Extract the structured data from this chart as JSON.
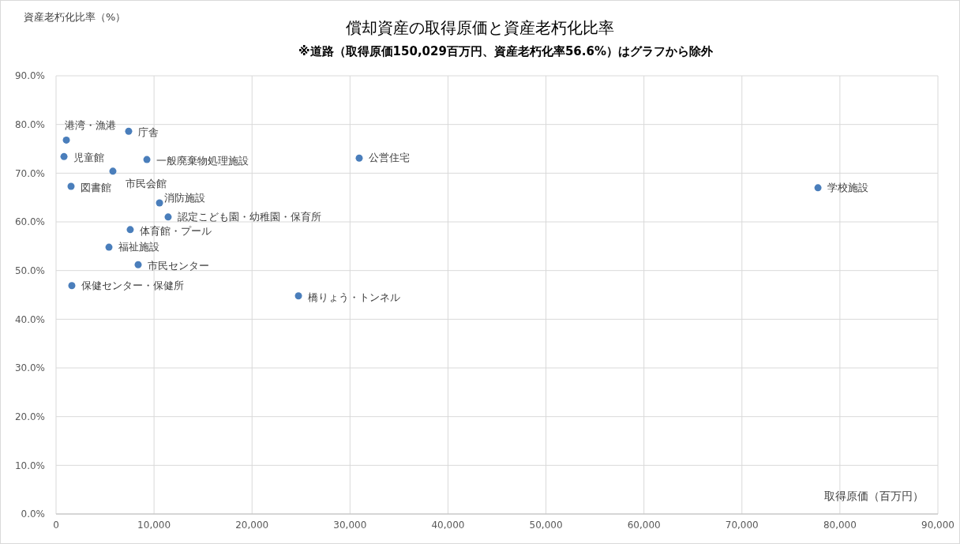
{
  "chart_data": {
    "type": "scatter",
    "title": "償却資産の取得原価と資産老朽化比率",
    "subtitle": "※道路（取得原価150,029百万円、資産老朽化率56.6%）はグラフから除外",
    "xlabel": "取得原価（百万円）",
    "ylabel": "資産老朽化比率（%）",
    "series": [
      {
        "color": "#4a7ebb",
        "x": [
          1050,
          7410,
          810,
          9270,
          5800,
          1530,
          10560,
          11440,
          7570,
          5400,
          8380,
          1610,
          24740,
          30940,
          77760
        ],
        "values": [
          76.8,
          78.6,
          73.4,
          72.8,
          70.4,
          67.3,
          63.9,
          61.0,
          58.4,
          54.8,
          51.2,
          46.9,
          44.8,
          73.1,
          67.0
        ]
      }
    ],
    "annotations": [
      {
        "text": "港湾・漁港",
        "x": 1050,
        "y": 76.8
      },
      {
        "text": "庁舎",
        "x": 7410,
        "y": 78.6
      },
      {
        "text": "児童館",
        "x": 810,
        "y": 73.4
      },
      {
        "text": "一般廃棄物処理施設",
        "x": 9270,
        "y": 72.8
      },
      {
        "text": "市民会館",
        "x": 5800,
        "y": 70.4
      },
      {
        "text": "図書館",
        "x": 1530,
        "y": 67.3
      },
      {
        "text": "消防施設",
        "x": 10560,
        "y": 63.9
      },
      {
        "text": "認定こども園・幼稚園・保育所",
        "x": 11440,
        "y": 61.0
      },
      {
        "text": "体育館・プール",
        "x": 7570,
        "y": 58.4
      },
      {
        "text": "福祉施設",
        "x": 5400,
        "y": 54.8
      },
      {
        "text": "市民センター",
        "x": 8380,
        "y": 51.2
      },
      {
        "text": "保健センター・保健所",
        "x": 1610,
        "y": 46.9
      },
      {
        "text": "橋りょう・トンネル",
        "x": 24740,
        "y": 44.8
      },
      {
        "text": "公営住宅",
        "x": 30940,
        "y": 73.1
      },
      {
        "text": "学校施設",
        "x": 77760,
        "y": 67.0
      }
    ],
    "xlim": [
      0,
      90000
    ],
    "xticks": [
      {
        "value": 0,
        "label": "0"
      },
      {
        "value": 10000,
        "label": "10,000"
      },
      {
        "value": 20000,
        "label": "20,000"
      },
      {
        "value": 30000,
        "label": "30,000"
      },
      {
        "value": 40000,
        "label": "40,000"
      },
      {
        "value": 50000,
        "label": "50,000"
      },
      {
        "value": 60000,
        "label": "60,000"
      },
      {
        "value": 70000,
        "label": "70,000"
      },
      {
        "value": 80000,
        "label": "80,000"
      },
      {
        "value": 90000,
        "label": "90,000"
      }
    ],
    "ylim": [
      0,
      90
    ],
    "yticks": [
      {
        "value": 0,
        "label": "0.0%"
      },
      {
        "value": 10,
        "label": "10.0%"
      },
      {
        "value": 20,
        "label": "20.0%"
      },
      {
        "value": 30,
        "label": "30.0%"
      },
      {
        "value": 40,
        "label": "40.0%"
      },
      {
        "value": 50,
        "label": "50.0%"
      },
      {
        "value": 60,
        "label": "60.0%"
      },
      {
        "value": 70,
        "label": "70.0%"
      },
      {
        "value": 80,
        "label": "80.0%"
      },
      {
        "value": 90,
        "label": "90.0%"
      }
    ],
    "grid": true,
    "marker": "circle"
  }
}
